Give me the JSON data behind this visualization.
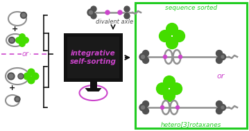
{
  "bg_color": "#ffffff",
  "green_box_color": "#22cc22",
  "magenta_color": "#cc44cc",
  "dark_gray": "#505050",
  "gray": "#909090",
  "light_gray": "#b0b0b0",
  "green_blob": "#44dd00",
  "black": "#111111",
  "title_seq": "sequence sorted",
  "title_rot": "hetero[3]rotaxanes",
  "label_divalent": "divalent axle",
  "label_integrative": "integrative\nself-sorting",
  "label_or_left": "or",
  "label_or_right": "or",
  "fig_width": 3.59,
  "fig_height": 1.89,
  "dpi": 100
}
